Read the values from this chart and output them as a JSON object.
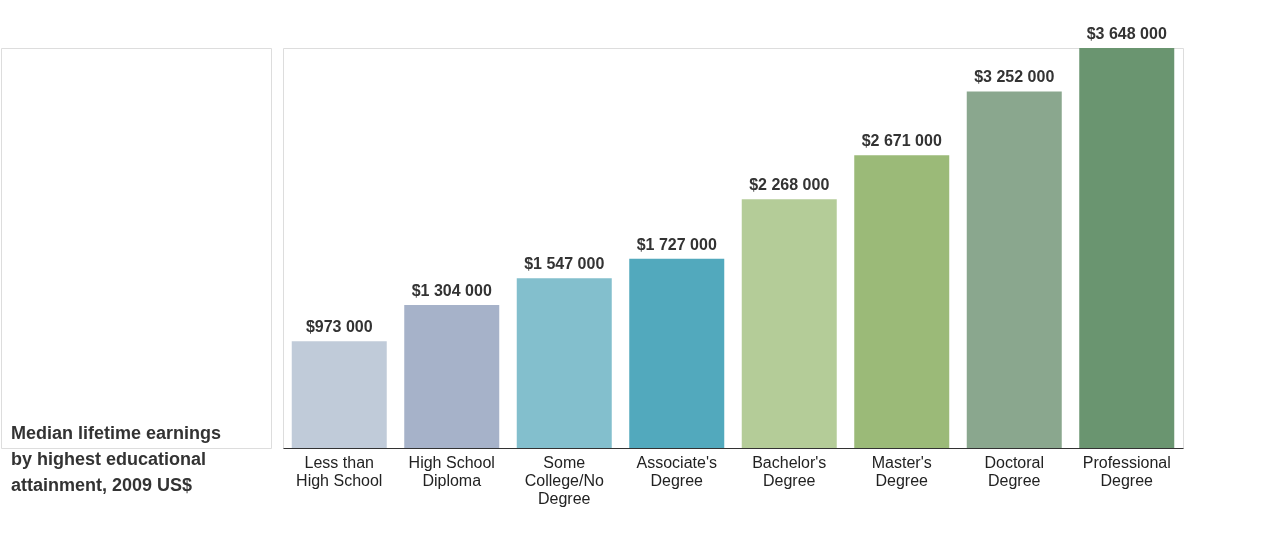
{
  "chart_data": {
    "type": "bar",
    "title": "Median lifetime earnings by highest educational attainment, 2009 US$",
    "categories": [
      "Less than High School",
      "High School Diploma",
      "Some College/No Degree",
      "Associate's Degree",
      "Bachelor's Degree",
      "Master's Degree",
      "Doctoral Degree",
      "Professional Degree"
    ],
    "values": [
      973000,
      1304000,
      1547000,
      1727000,
      2268000,
      2671000,
      3252000,
      3648000
    ],
    "value_labels": [
      "$973 000",
      "$1 304 000",
      "$1 547 000",
      "$1 727 000",
      "$2 268 000",
      "$2 671 000",
      "$3 252 000",
      "$3 648 000"
    ],
    "colors": [
      "#c0cbd9",
      "#a6b2c9",
      "#83bfcd",
      "#52a9bd",
      "#b4cc98",
      "#9bba78",
      "#8aa78e",
      "#6a9570"
    ]
  }
}
